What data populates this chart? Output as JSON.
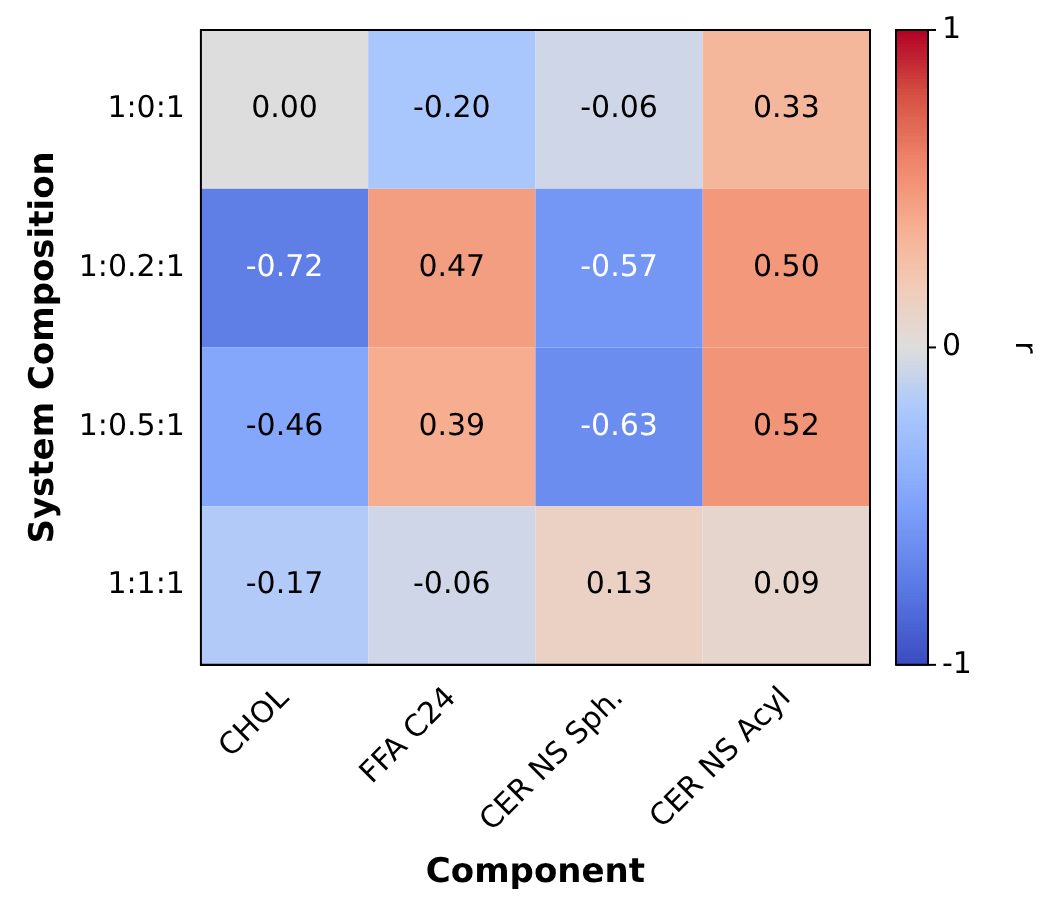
{
  "chart_data": {
    "type": "heatmap",
    "xlabel": "Component",
    "ylabel": "System Composition",
    "clabel": "r",
    "categories": [
      "CHOL",
      "FFA C24",
      "CER NS Sph.",
      "CER NS Acyl"
    ],
    "y_categories": [
      "1:0:1",
      "1:0.2:1",
      "1:0.5:1",
      "1:1:1"
    ],
    "cells": [
      [
        0.0,
        -0.2,
        -0.06,
        0.33
      ],
      [
        -0.72,
        0.47,
        -0.57,
        0.5
      ],
      [
        -0.46,
        0.39,
        -0.63,
        0.52
      ],
      [
        -0.17,
        -0.06,
        0.13,
        0.09
      ]
    ],
    "cell_labels": [
      [
        "0.00",
        "-0.20",
        "-0.06",
        "0.33"
      ],
      [
        "-0.72",
        "0.47",
        "-0.57",
        "0.50"
      ],
      [
        "-0.46",
        "0.39",
        "-0.63",
        "0.52"
      ],
      [
        "-0.17",
        "-0.06",
        "0.13",
        "0.09"
      ]
    ],
    "clim": [
      -1,
      1
    ],
    "cticks": [
      -1,
      0,
      1
    ]
  }
}
